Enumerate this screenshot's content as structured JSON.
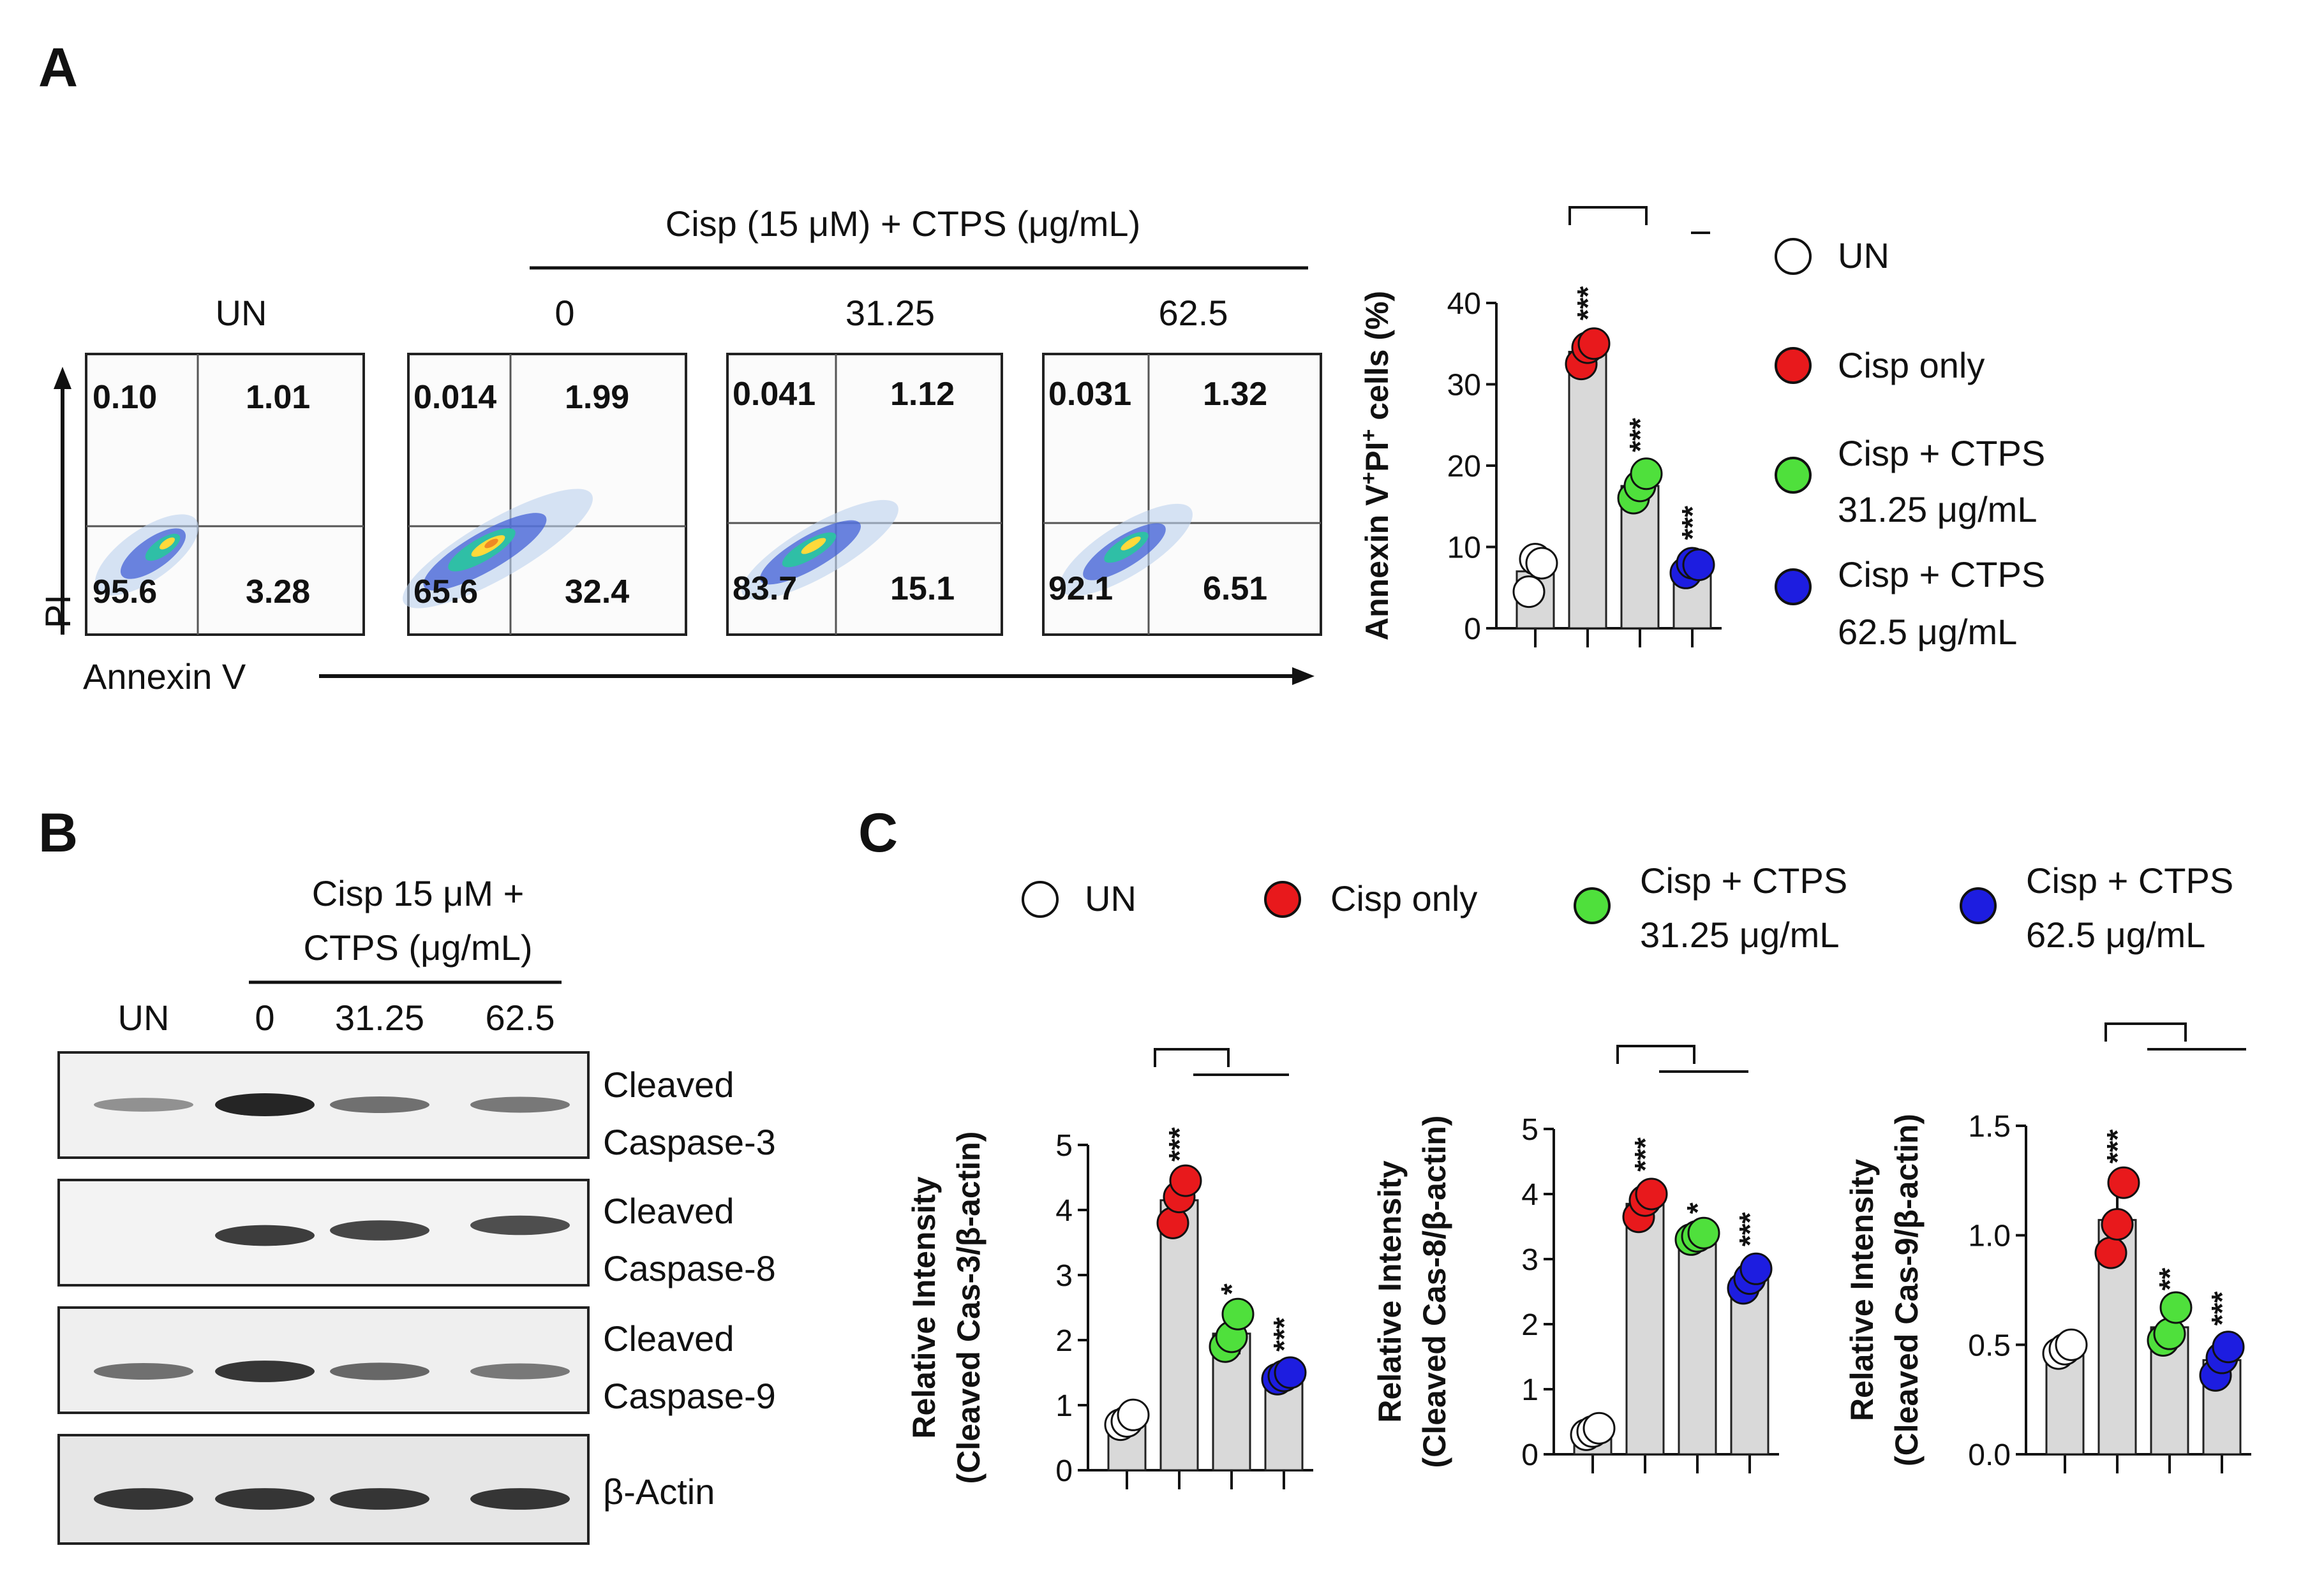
{
  "panels": {
    "a": "A",
    "b": "B",
    "c": "C"
  },
  "colors": {
    "un": "#ffffff",
    "cisp": "#e8191c",
    "ctps_low": "#4fe03c",
    "ctps_high": "#1d1de0",
    "bar": "#d9d9d9"
  },
  "flow": {
    "header": "Cisp (15 μM) + CTPS (μg/mL)",
    "x_axis": "Annexin V",
    "y_axis": "PI",
    "plots": [
      {
        "label": "UN",
        "q_ul": "0.10",
        "q_ur": "1.01",
        "q_ll": "95.6",
        "q_lr": "3.28"
      },
      {
        "label": "0",
        "q_ul": "0.014",
        "q_ur": "1.99",
        "q_ll": "65.6",
        "q_lr": "32.4"
      },
      {
        "label": "31.25",
        "q_ul": "0.041",
        "q_ur": "1.12",
        "q_ll": "83.7",
        "q_lr": "15.1"
      },
      {
        "label": "62.5",
        "q_ul": "0.031",
        "q_ur": "1.32",
        "q_ll": "92.1",
        "q_lr": "6.51"
      }
    ]
  },
  "legend_a": [
    {
      "key": "un",
      "line1": "UN",
      "line2": ""
    },
    {
      "key": "cisp",
      "line1": "Cisp only",
      "line2": ""
    },
    {
      "key": "ctps_low",
      "line1": "Cisp + CTPS",
      "line2": "31.25 μg/mL"
    },
    {
      "key": "ctps_high",
      "line1": "Cisp + CTPS",
      "line2": "62.5 μg/mL"
    }
  ],
  "legend_c": [
    {
      "key": "un",
      "line1": "UN",
      "line2": ""
    },
    {
      "key": "cisp",
      "line1": "Cisp only",
      "line2": ""
    },
    {
      "key": "ctps_low",
      "line1": "Cisp + CTPS",
      "line2": "31.25 μg/mL"
    },
    {
      "key": "ctps_high",
      "line1": "Cisp + CTPS",
      "line2": "62.5 μg/mL"
    }
  ],
  "western": {
    "header_line1": "Cisp 15 μM +",
    "header_line2": "CTPS (μg/mL)",
    "lanes": [
      "UN",
      "0",
      "31.25",
      "62.5"
    ],
    "blots": [
      {
        "line1": "Cleaved",
        "line2": "Caspase-3",
        "intensity": [
          0.35,
          1.0,
          0.55,
          0.5
        ]
      },
      {
        "line1": "Cleaved",
        "line2": "Caspase-8",
        "intensity": [
          0.0,
          0.85,
          0.8,
          0.75
        ]
      },
      {
        "line1": "Cleaved",
        "line2": "Caspase-9",
        "intensity": [
          0.55,
          0.9,
          0.6,
          0.5
        ]
      },
      {
        "line1": "β-Actin",
        "line2": "",
        "intensity": [
          0.9,
          0.9,
          0.9,
          0.9
        ]
      }
    ]
  },
  "chart_data": [
    {
      "type": "bar",
      "ylabel_parts": [
        "Annexin V",
        "+",
        "PI",
        "+",
        " cells  (%)"
      ],
      "ylabel_line2": "",
      "categories": [
        "UN",
        "Cisp only",
        "Cisp + CTPS 31.25 μg/mL",
        "Cisp + CTPS 62.5 μg/mL"
      ],
      "values": [
        7.0,
        34.0,
        17.5,
        7.5
      ],
      "errors": [
        2.5,
        1.5,
        1.8,
        1.0
      ],
      "points": [
        [
          4.5,
          8.5,
          8.0
        ],
        [
          32.5,
          34.5,
          35.0
        ],
        [
          16.0,
          17.5,
          19.0
        ],
        [
          6.8,
          8.0,
          7.8
        ]
      ],
      "ylim": [
        0,
        40
      ],
      "yticks": [
        0,
        10,
        20,
        30,
        40
      ],
      "ytick_labels": [
        "0",
        "10",
        "20",
        "30",
        "40"
      ],
      "stars": [
        "",
        "***",
        "***",
        "***"
      ]
    },
    {
      "type": "bar",
      "ylabel_parts": [
        "Relative Intensity"
      ],
      "ylabel_line2": "(Cleaved Cas-3/β-actin)",
      "categories": [
        "UN",
        "Cisp only",
        "Cisp + CTPS 31.25 μg/mL",
        "Cisp + CTPS 62.5 μg/mL"
      ],
      "values": [
        0.78,
        4.15,
        2.1,
        1.45
      ],
      "errors": [
        0.1,
        0.3,
        0.3,
        0.08
      ],
      "points": [
        [
          0.7,
          0.75,
          0.85
        ],
        [
          3.8,
          4.2,
          4.45
        ],
        [
          1.9,
          2.05,
          2.4
        ],
        [
          1.4,
          1.45,
          1.5
        ]
      ],
      "ylim": [
        0,
        5
      ],
      "yticks": [
        0,
        1,
        2,
        3,
        4,
        5
      ],
      "ytick_labels": [
        "0",
        "1",
        "2",
        "3",
        "4",
        "5"
      ],
      "stars": [
        "",
        "***",
        "*",
        "***"
      ]
    },
    {
      "type": "bar",
      "ylabel_parts": [
        "Relative Intensity"
      ],
      "ylabel_line2": "(Cleaved Cas-8/β-actin)",
      "categories": [
        "UN",
        "Cisp only",
        "Cisp + CTPS 31.25 μg/mL",
        "Cisp + CTPS 62.5 μg/mL"
      ],
      "values": [
        0.35,
        3.85,
        3.35,
        2.7
      ],
      "errors": [
        0.05,
        0.2,
        0.05,
        0.2
      ],
      "points": [
        [
          0.3,
          0.35,
          0.4
        ],
        [
          3.65,
          3.9,
          4.0
        ],
        [
          3.3,
          3.35,
          3.4
        ],
        [
          2.55,
          2.7,
          2.85
        ]
      ],
      "ylim": [
        0,
        5
      ],
      "yticks": [
        0,
        1,
        2,
        3,
        4,
        5
      ],
      "ytick_labels": [
        "0",
        "1",
        "2",
        "3",
        "4",
        "5"
      ],
      "stars": [
        "",
        "***",
        "*",
        "***"
      ]
    },
    {
      "type": "bar",
      "ylabel_parts": [
        "Relative Intensity"
      ],
      "ylabel_line2": "(Cleaved Cas-9/β-actin)",
      "categories": [
        "UN",
        "Cisp only",
        "Cisp + CTPS 31.25 μg/mL",
        "Cisp + CTPS 62.5 μg/mL"
      ],
      "values": [
        0.48,
        1.07,
        0.58,
        0.43
      ],
      "errors": [
        0.02,
        0.17,
        0.08,
        0.07
      ],
      "points": [
        [
          0.46,
          0.48,
          0.5
        ],
        [
          0.92,
          1.05,
          1.24
        ],
        [
          0.52,
          0.55,
          0.67
        ],
        [
          0.36,
          0.44,
          0.49
        ]
      ],
      "ylim": [
        0,
        1.5
      ],
      "yticks": [
        0,
        0.5,
        1.0,
        1.5
      ],
      "ytick_labels": [
        "0.0",
        "0.5",
        "1.0",
        "1.5"
      ],
      "stars": [
        "",
        "***",
        "**",
        "***"
      ]
    }
  ]
}
